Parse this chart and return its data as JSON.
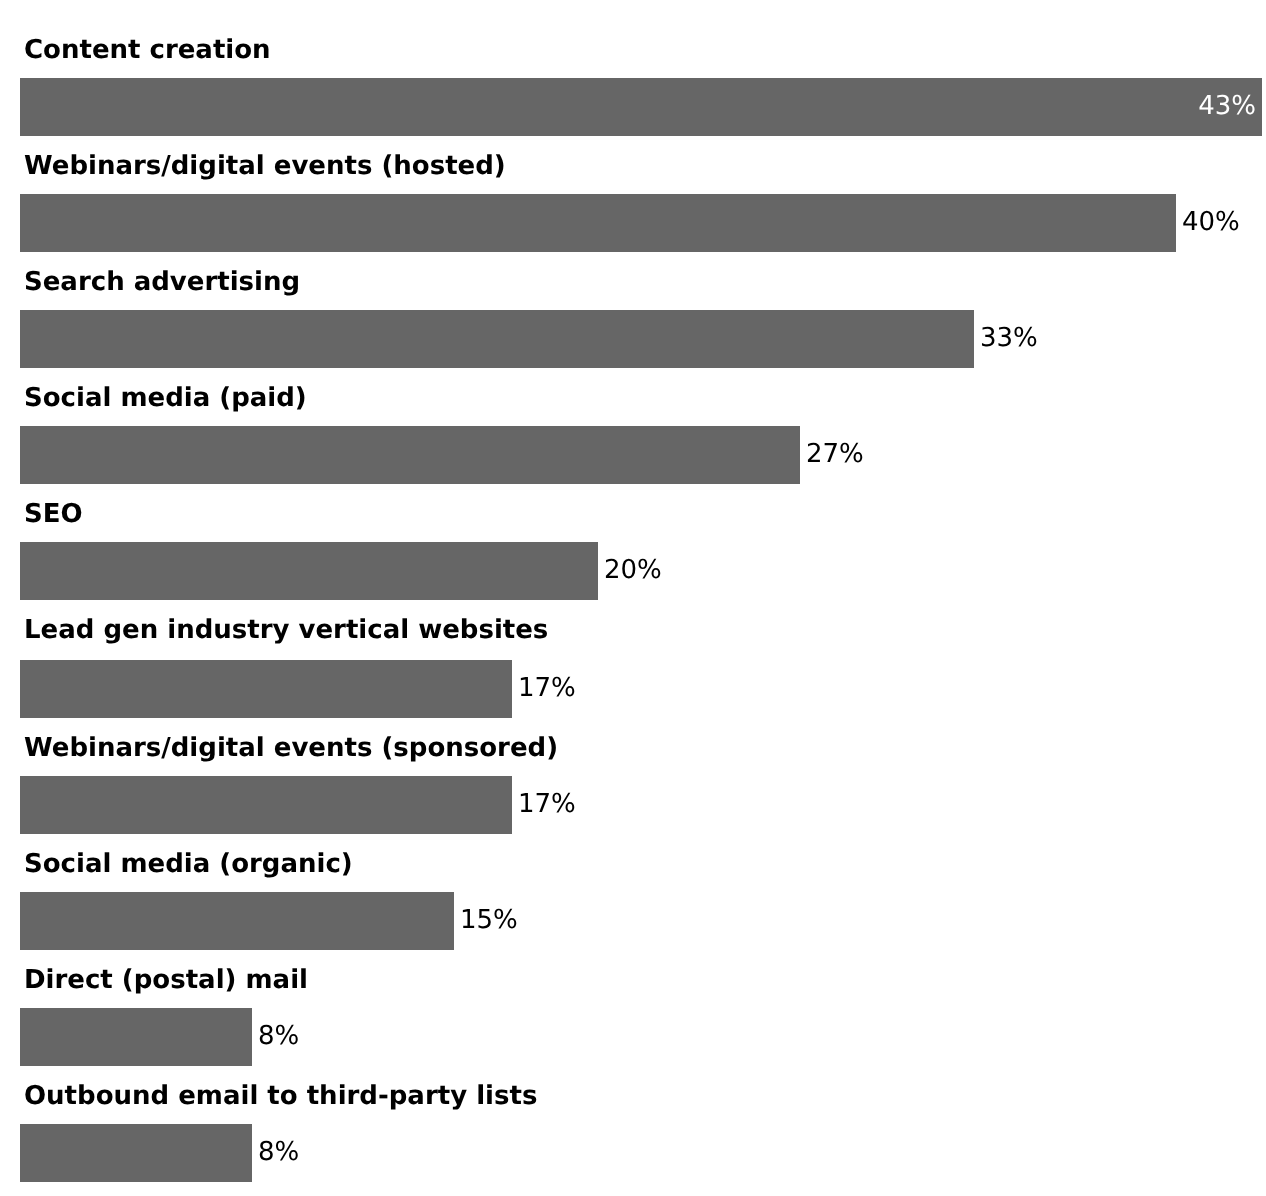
{
  "chart_data": {
    "type": "bar",
    "orientation": "horizontal",
    "categories": [
      "Content creation",
      "Webinars/digital events (hosted)",
      "Search advertising",
      "Social media (paid)",
      "SEO",
      "Lead gen industry vertical websites",
      "Webinars/digital events (sponsored)",
      "Social media (organic)",
      "Direct (postal) mail",
      "Outbound email to third-party lists"
    ],
    "values": [
      43,
      40,
      33,
      27,
      20,
      17,
      17,
      15,
      8,
      8
    ],
    "value_labels": [
      "43%",
      "40%",
      "33%",
      "27%",
      "20%",
      "17%",
      "17%",
      "15%",
      "8%",
      "8%"
    ],
    "color": "#666666"
  }
}
